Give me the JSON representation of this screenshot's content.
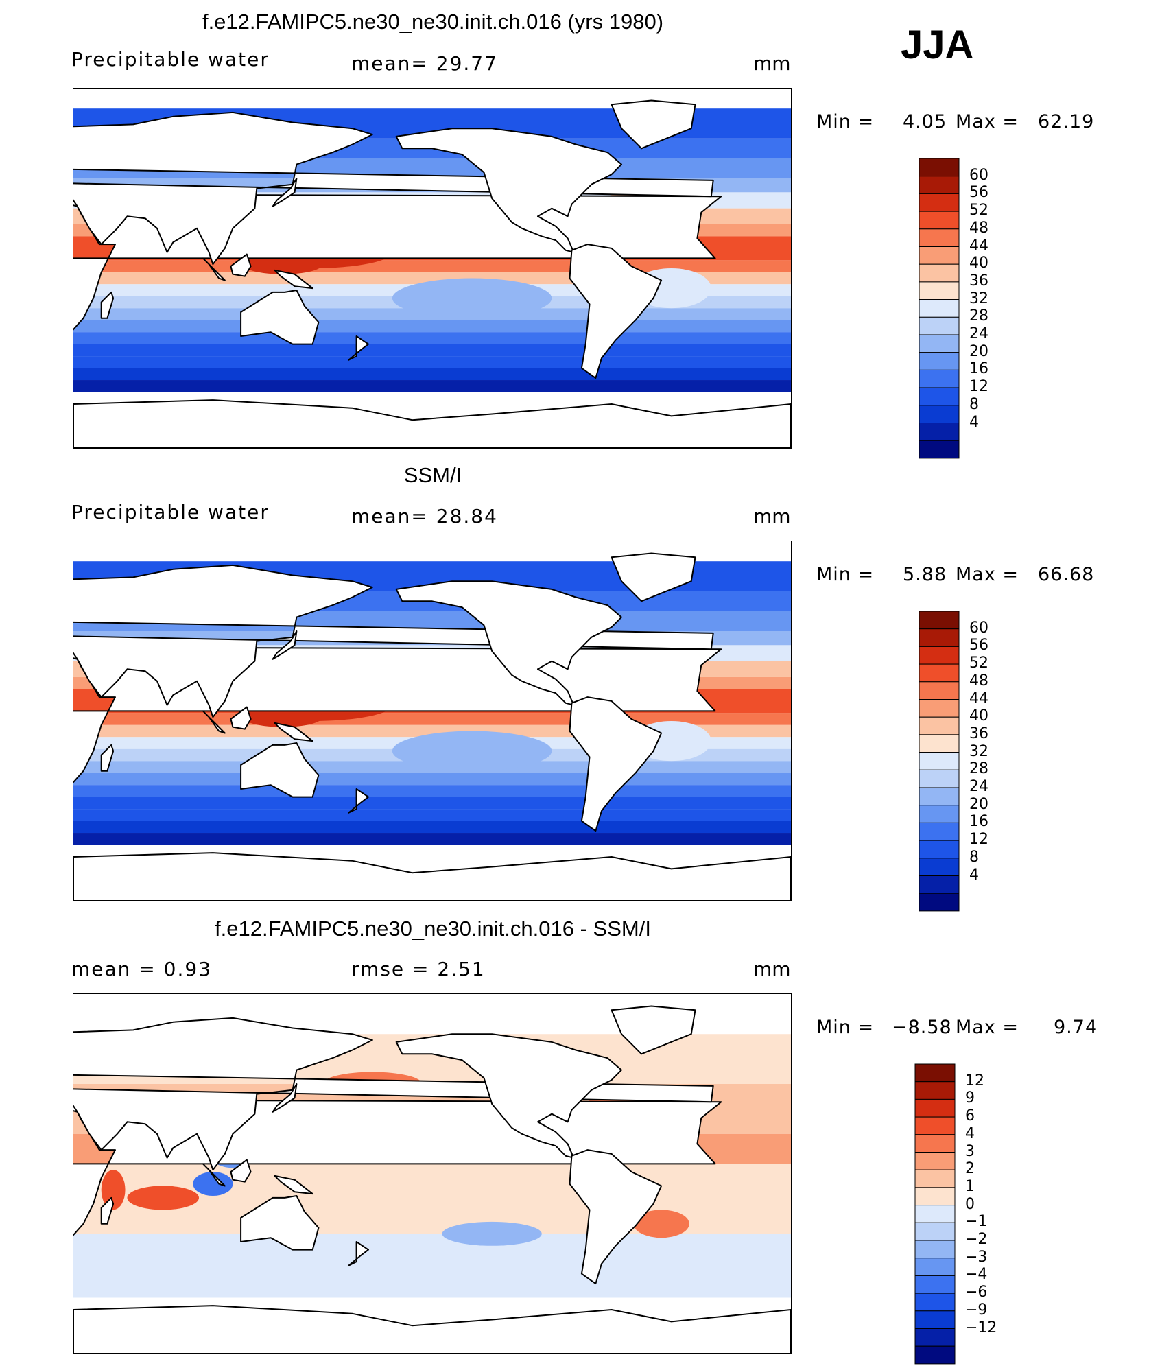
{
  "season_label": "JJA",
  "colors": {
    "abs_scale": [
      "#000a80",
      "#0520a8",
      "#0a3cd2",
      "#1e55e8",
      "#3c72f0",
      "#6796f2",
      "#93b6f4",
      "#bcd2f7",
      "#dde9fb",
      "#fde3cf",
      "#fbc3a3",
      "#f99d76",
      "#f6764e",
      "#ef4f2a",
      "#d42e12",
      "#a81a06",
      "#7a0f02"
    ],
    "diff_scale": [
      "#000a80",
      "#0520a8",
      "#0a3cd2",
      "#1e55e8",
      "#3c72f0",
      "#6796f2",
      "#93b6f4",
      "#bcd2f7",
      "#dde9fb",
      "#fde3cf",
      "#fbc3a3",
      "#f99d76",
      "#f6764e",
      "#ef4f2a",
      "#d42e12",
      "#a81a06",
      "#7a0f02"
    ],
    "land": "#ffffff",
    "coast": "#000000"
  },
  "panels": [
    {
      "title": "f.e12.FAMIPC5.ne30_ne30.init.ch.016 (yrs 1980)",
      "left_label": "Precipitable  water",
      "center_label": "mean=   29.77",
      "units": "mm",
      "min_label": "Min  =",
      "min_value": "4.05",
      "max_label": "Max  =",
      "max_value": "62.19",
      "levels": [
        "60",
        "56",
        "52",
        "48",
        "44",
        "40",
        "36",
        "32",
        "28",
        "24",
        "20",
        "16",
        "12",
        "8",
        "4"
      ]
    },
    {
      "title": "SSM/I",
      "left_label": "Precipitable  water",
      "center_label": "mean=   28.84",
      "units": "mm",
      "min_label": "Min  =",
      "min_value": "5.88",
      "max_label": "Max  =",
      "max_value": "66.68",
      "levels": [
        "60",
        "56",
        "52",
        "48",
        "44",
        "40",
        "36",
        "32",
        "28",
        "24",
        "20",
        "16",
        "12",
        "8",
        "4"
      ]
    },
    {
      "title": "f.e12.FAMIPC5.ne30_ne30.init.ch.016 - SSM/I",
      "left_label": "mean  =      0.93",
      "center_label": "rmse  =      2.51",
      "units": "mm",
      "min_label": "Min  =",
      "min_value": "−8.58",
      "max_label": "Max  =",
      "max_value": "9.74",
      "levels": [
        "12",
        "9",
        "6",
        "4",
        "3",
        "2",
        "1",
        "0",
        "−1",
        "−2",
        "−3",
        "−4",
        "−6",
        "−9",
        "−12"
      ]
    }
  ],
  "chart_data": [
    {
      "type": "heatmap",
      "title": "f.e12.FAMIPC5.ne30_ne30.init.ch.016 (yrs 1980)",
      "variable": "Precipitable  water",
      "units": "mm",
      "mean": 29.77,
      "min": 4.05,
      "max": 62.19,
      "contour_levels": [
        4,
        8,
        12,
        16,
        20,
        24,
        28,
        32,
        36,
        40,
        44,
        48,
        52,
        56,
        60
      ],
      "lon_range": [
        30,
        390
      ],
      "lat_range": [
        -90,
        90
      ]
    },
    {
      "type": "heatmap",
      "title": "SSM/I",
      "variable": "Precipitable  water",
      "units": "mm",
      "mean": 28.84,
      "min": 5.88,
      "max": 66.68,
      "contour_levels": [
        4,
        8,
        12,
        16,
        20,
        24,
        28,
        32,
        36,
        40,
        44,
        48,
        52,
        56,
        60
      ],
      "lon_range": [
        30,
        390
      ],
      "lat_range": [
        -90,
        90
      ]
    },
    {
      "type": "heatmap",
      "title": "f.e12.FAMIPC5.ne30_ne30.init.ch.016 - SSM/I",
      "units": "mm",
      "mean": 0.93,
      "rmse": 2.51,
      "min": -8.58,
      "max": 9.74,
      "contour_levels": [
        -12,
        -9,
        -6,
        -4,
        -3,
        -2,
        -1,
        0,
        1,
        2,
        3,
        4,
        6,
        9,
        12
      ],
      "lon_range": [
        30,
        390
      ],
      "lat_range": [
        -90,
        90
      ]
    }
  ]
}
